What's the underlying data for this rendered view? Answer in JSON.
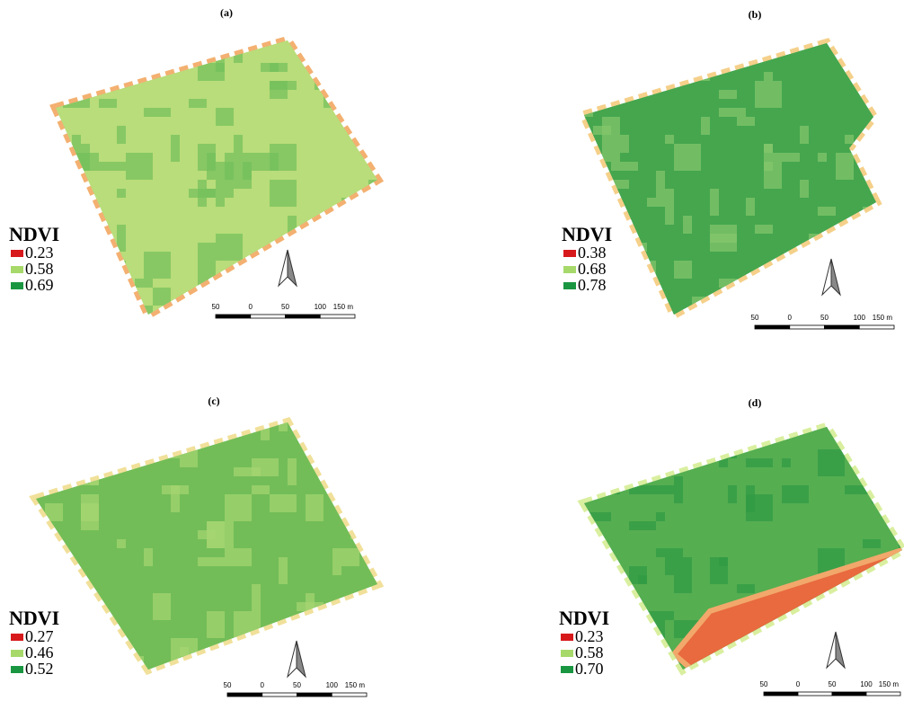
{
  "panels": [
    {
      "label": "(a)",
      "legend": {
        "title": "NDVI",
        "entries": [
          {
            "label": "0.23",
            "color": "#d7191c"
          },
          {
            "label": "0.58",
            "color": "#a6d96a"
          },
          {
            "label": "0.69",
            "color": "#1a9641"
          }
        ]
      },
      "scale": [
        "50",
        "0",
        "50",
        "100",
        "150 m"
      ]
    },
    {
      "label": "(b)",
      "legend": {
        "title": "NDVI",
        "entries": [
          {
            "label": "0.38",
            "color": "#d7191c"
          },
          {
            "label": "0.68",
            "color": "#a6d96a"
          },
          {
            "label": "0.78",
            "color": "#1a9641"
          }
        ]
      },
      "scale": [
        "50",
        "0",
        "50",
        "100",
        "150 m"
      ]
    },
    {
      "label": "(c)",
      "legend": {
        "title": "NDVI",
        "entries": [
          {
            "label": "0.27",
            "color": "#d7191c"
          },
          {
            "label": "0.46",
            "color": "#a6d96a"
          },
          {
            "label": "0.52",
            "color": "#1a9641"
          }
        ]
      },
      "scale": [
        "50",
        "0",
        "50",
        "100",
        "150 m"
      ]
    },
    {
      "label": "(d)",
      "legend": {
        "title": "NDVI",
        "entries": [
          {
            "label": "0.23",
            "color": "#d7191c"
          },
          {
            "label": "0.58",
            "color": "#a6d96a"
          },
          {
            "label": "0.70",
            "color": "#1a9641"
          }
        ]
      },
      "scale": [
        "50",
        "0",
        "50",
        "100",
        "150 m"
      ]
    }
  ]
}
